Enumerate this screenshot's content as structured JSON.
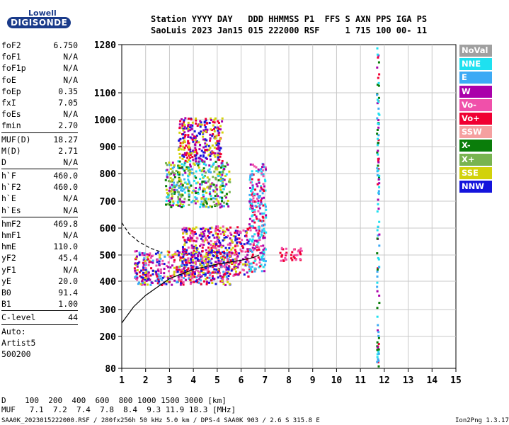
{
  "logo": {
    "top": "Lowell",
    "main": "DIGISONDE"
  },
  "header": {
    "row1": "Station YYYY DAY   DDD HHMMSS P1  FFS S AXN PPS IGA PS",
    "row2": "SaoLuis 2023 Jan15 015 222000 RSF     1 715 100 00- 11"
  },
  "params": [
    {
      "k": "foF2",
      "v": "6.750"
    },
    {
      "k": "foF1",
      "v": "N/A"
    },
    {
      "k": "foF1p",
      "v": "N/A"
    },
    {
      "k": "foE",
      "v": "N/A"
    },
    {
      "k": "foEp",
      "v": "0.35"
    },
    {
      "k": "fxI",
      "v": "7.05"
    },
    {
      "k": "foEs",
      "v": "N/A"
    },
    {
      "k": "fmin",
      "v": "2.70",
      "sep": true
    },
    {
      "k": "MUF(D)",
      "v": "18.27"
    },
    {
      "k": "M(D)",
      "v": "2.71"
    },
    {
      "k": "D",
      "v": "N/A",
      "sep": true
    },
    {
      "k": "h`F",
      "v": "460.0"
    },
    {
      "k": "h`F2",
      "v": "460.0"
    },
    {
      "k": "h`E",
      "v": "N/A"
    },
    {
      "k": "h`Es",
      "v": "N/A",
      "sep": true
    },
    {
      "k": "hmF2",
      "v": "469.8"
    },
    {
      "k": "hmF1",
      "v": "N/A"
    },
    {
      "k": "hmE",
      "v": "110.0"
    },
    {
      "k": "yF2",
      "v": "45.4"
    },
    {
      "k": "yF1",
      "v": "N/A"
    },
    {
      "k": "yE",
      "v": "20.0"
    },
    {
      "k": "B0",
      "v": "91.4"
    },
    {
      "k": "B1",
      "v": "1.00",
      "sep": true
    },
    {
      "k": "C-level",
      "v": "44",
      "sep": true
    }
  ],
  "auto": [
    "Auto:",
    "Artist5",
    "500200"
  ],
  "legend": [
    {
      "label": "NoVal",
      "color": "#a0a0a0"
    },
    {
      "label": "NNE",
      "color": "#1ee1f0"
    },
    {
      "label": "E",
      "color": "#3caaf5"
    },
    {
      "label": "W",
      "color": "#aa00aa"
    },
    {
      "label": "Vo-",
      "color": "#f050aa"
    },
    {
      "label": "Vo+",
      "color": "#f00032"
    },
    {
      "label": "SSW",
      "color": "#f5a0a0"
    },
    {
      "label": "X-",
      "color": "#0a7d0a"
    },
    {
      "label": "X+",
      "color": "#78b450"
    },
    {
      "label": "SSE",
      "color": "#d2d20a"
    },
    {
      "label": "NNW",
      "color": "#1414dc"
    }
  ],
  "footer": {
    "d_row": "D    100  200  400  600  800 1000 1500 3000 [km]",
    "muf_row": "MUF   7.1  7.2  7.4  7.8  8.4  9.3 11.9 18.3 [MHz]",
    "file": "SAA0K_2023015222000.RSF / 280fx256h 50 kHz 5.0 km / DPS-4 SAA0K 903 / 2.6 S 315.8 E",
    "version": "Ion2Png 1.3.17"
  },
  "chart_data": {
    "type": "scatter",
    "xlim": [
      1,
      15
    ],
    "ylim": [
      80,
      1280
    ],
    "y_scale": "nonlinear (ionogram virtual height)",
    "x_ticks": [
      1,
      2,
      3,
      4,
      5,
      6,
      7,
      8,
      9,
      10,
      11,
      12,
      13,
      14,
      15
    ],
    "y_ticks": [
      80,
      200,
      300,
      400,
      500,
      600,
      700,
      800,
      900,
      1000,
      1100,
      1280
    ],
    "grid": true,
    "legend_position": "right",
    "clusters": [
      {
        "name": "F-trace low",
        "x": [
          1.5,
          5.5
        ],
        "y": [
          390,
          520
        ],
        "color_mix": [
          "#1414dc",
          "#aa00aa",
          "#f00032",
          "#f050aa",
          "#d2d20a",
          "#3caaf5"
        ]
      },
      {
        "name": "F-trace mid",
        "x": [
          3.5,
          6.3
        ],
        "y": [
          420,
          610
        ],
        "color_mix": [
          "#f00032",
          "#aa00aa",
          "#f050aa",
          "#1414dc",
          "#d2d20a"
        ]
      },
      {
        "name": "Spread F rising",
        "x": [
          6.3,
          7.0
        ],
        "y": [
          440,
          840
        ],
        "color_mix": [
          "#f00032",
          "#f050aa",
          "#aa00aa",
          "#3caaf5",
          "#1ee1f0"
        ]
      },
      {
        "name": "Multi-hop echo",
        "x": [
          2.8,
          5.5
        ],
        "y": [
          680,
          850
        ],
        "color_mix": [
          "#d2d20a",
          "#78b450",
          "#0a7d0a",
          "#3caaf5",
          "#1ee1f0",
          "#aa00aa"
        ]
      },
      {
        "name": "High spread",
        "x": [
          3.3,
          5.2
        ],
        "y": [
          850,
          1010
        ],
        "color_mix": [
          "#aa00aa",
          "#1414dc",
          "#d2d20a",
          "#f00032"
        ]
      },
      {
        "name": "Isolated blob",
        "x": [
          7.6,
          8.5
        ],
        "y": [
          480,
          530
        ],
        "color_mix": [
          "#f00032",
          "#f050aa"
        ]
      },
      {
        "name": "Vertical line",
        "x": [
          11.65,
          11.75
        ],
        "y": [
          85,
          1270
        ],
        "color_mix": [
          "#aa00aa",
          "#0a7d0a",
          "#3caaf5",
          "#1ee1f0",
          "#f00032"
        ]
      }
    ],
    "curves": [
      {
        "name": "E-profile solid",
        "style": "solid",
        "x": [
          1.0,
          1.5,
          2.0,
          3.0,
          4.0,
          5.0,
          6.0,
          6.5,
          6.75
        ],
        "y": [
          250,
          310,
          350,
          410,
          445,
          465,
          480,
          490,
          500
        ]
      },
      {
        "name": "Extrapolation dashed",
        "style": "dashed",
        "x": [
          1.0,
          1.3,
          1.7,
          2.2,
          2.7
        ],
        "y": [
          620,
          580,
          550,
          525,
          510
        ]
      }
    ]
  }
}
